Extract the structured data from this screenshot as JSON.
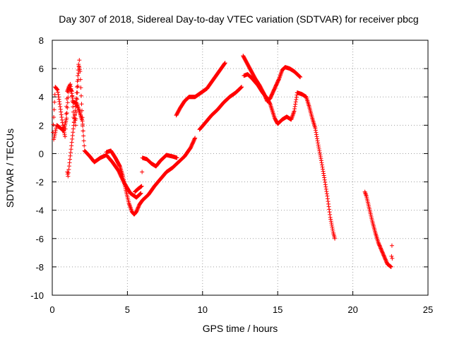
{
  "chart_data": {
    "type": "scatter",
    "title": "Day 307 of 2018, Sidereal Day-to-day VTEC variation (SDTVAR) for receiver pbcg",
    "xlabel": "GPS time / hours",
    "ylabel": "SDTVAR / TECUs",
    "xlim": [
      0,
      25
    ],
    "ylim": [
      -10,
      8
    ],
    "xticks": [
      "0",
      "5",
      "10",
      "15",
      "20",
      "25"
    ],
    "yticks": [
      "-10",
      "-8",
      "-6",
      "-4",
      "-2",
      "0",
      "2",
      "4",
      "6",
      "8"
    ],
    "grid": true,
    "marker": "plus",
    "series": [
      {
        "name": "trace-a",
        "color": "#ff0000",
        "points": [
          [
            0.05,
            1.5
          ],
          [
            0.2,
            4.7
          ],
          [
            0.35,
            4.5
          ],
          [
            0.5,
            3.5
          ],
          [
            0.7,
            2.0
          ],
          [
            0.85,
            1.2
          ],
          [
            1.0,
            4.4
          ],
          [
            1.2,
            4.9
          ],
          [
            1.4,
            3.6
          ],
          [
            1.6,
            3.6
          ],
          [
            1.8,
            3.0
          ],
          [
            2.0,
            2.3
          ],
          [
            2.15,
            0.2
          ],
          [
            2.5,
            -0.2
          ],
          [
            2.8,
            -0.6
          ],
          [
            3.2,
            -0.3
          ],
          [
            3.6,
            -0.1
          ],
          [
            4.0,
            -0.6
          ],
          [
            4.4,
            -1.2
          ],
          [
            4.8,
            -2.1
          ],
          [
            5.2,
            -2.8
          ],
          [
            5.6,
            -3.1
          ],
          [
            5.9,
            -2.8
          ]
        ]
      },
      {
        "name": "trace-b",
        "color": "#ff0000",
        "points": [
          [
            0.1,
            1.0
          ],
          [
            0.3,
            2.0
          ],
          [
            0.55,
            1.8
          ],
          [
            0.75,
            1.6
          ],
          [
            0.95,
            2.5
          ],
          [
            1.1,
            4.7
          ],
          [
            1.3,
            4.4
          ],
          [
            1.45,
            2.2
          ],
          [
            1.6,
            3.9
          ],
          [
            1.75,
            6.3
          ],
          [
            1.85,
            5.8
          ],
          [
            1.95,
            3.5
          ],
          [
            2.05,
            1.6
          ]
        ]
      },
      {
        "name": "trace-c",
        "color": "#ff0000",
        "points": [
          [
            1.0,
            -1.3
          ],
          [
            1.05,
            -1.6
          ],
          [
            1.5,
            2.7
          ],
          [
            1.55,
            2.0
          ],
          [
            1.8,
            6.6
          ]
        ]
      },
      {
        "name": "trace-d",
        "color": "#ff0000",
        "points": [
          [
            3.6,
            0.1
          ],
          [
            3.9,
            0.2
          ],
          [
            4.2,
            -0.3
          ],
          [
            4.5,
            -0.9
          ],
          [
            4.7,
            -1.6
          ],
          [
            4.9,
            -2.6
          ],
          [
            5.1,
            -3.5
          ],
          [
            5.3,
            -4.1
          ],
          [
            5.45,
            -4.3
          ],
          [
            5.6,
            -4.1
          ],
          [
            5.8,
            -3.6
          ],
          [
            6.0,
            -3.3
          ],
          [
            6.4,
            -2.9
          ],
          [
            6.8,
            -2.3
          ],
          [
            7.2,
            -1.8
          ],
          [
            7.6,
            -1.3
          ],
          [
            8.0,
            -1.0
          ],
          [
            8.4,
            -0.6
          ],
          [
            8.8,
            -0.2
          ],
          [
            9.2,
            0.4
          ],
          [
            9.5,
            1.1
          ]
        ]
      },
      {
        "name": "trace-e",
        "color": "#ff0000",
        "points": [
          [
            5.5,
            -2.7
          ],
          [
            5.7,
            -2.5
          ],
          [
            5.95,
            -2.3
          ],
          [
            6.0,
            -0.3
          ],
          [
            6.3,
            -0.4
          ],
          [
            6.6,
            -0.7
          ],
          [
            6.9,
            -0.9
          ],
          [
            7.2,
            -0.5
          ],
          [
            7.6,
            -0.1
          ],
          [
            8.0,
            -0.2
          ],
          [
            8.3,
            -0.3
          ]
        ]
      },
      {
        "name": "trace-f",
        "color": "#ff0000",
        "points": [
          [
            8.25,
            2.7
          ],
          [
            8.5,
            3.2
          ],
          [
            8.8,
            3.7
          ],
          [
            9.1,
            4.0
          ],
          [
            9.5,
            4.0
          ],
          [
            9.9,
            4.3
          ],
          [
            10.3,
            4.6
          ],
          [
            10.7,
            5.2
          ],
          [
            11.1,
            5.8
          ],
          [
            11.5,
            6.4
          ]
        ]
      },
      {
        "name": "trace-g",
        "color": "#ff0000",
        "points": [
          [
            9.8,
            1.7
          ],
          [
            10.2,
            2.2
          ],
          [
            10.6,
            2.7
          ],
          [
            11.0,
            3.1
          ],
          [
            11.4,
            3.6
          ],
          [
            11.8,
            4.0
          ],
          [
            12.2,
            4.3
          ],
          [
            12.6,
            4.7
          ]
        ]
      },
      {
        "name": "trace-h",
        "color": "#ff0000",
        "points": [
          [
            12.75,
            5.5
          ],
          [
            13.0,
            5.6
          ],
          [
            13.3,
            5.3
          ],
          [
            13.7,
            4.8
          ],
          [
            14.0,
            4.3
          ],
          [
            14.3,
            3.9
          ],
          [
            14.5,
            3.5
          ],
          [
            14.8,
            2.5
          ],
          [
            15.0,
            2.1
          ],
          [
            15.3,
            2.4
          ],
          [
            15.6,
            2.6
          ],
          [
            15.9,
            2.4
          ],
          [
            16.1,
            3.0
          ],
          [
            16.3,
            4.3
          ]
        ]
      },
      {
        "name": "trace-i",
        "color": "#ff0000",
        "points": [
          [
            12.7,
            6.9
          ],
          [
            12.9,
            6.5
          ],
          [
            13.2,
            5.9
          ],
          [
            13.5,
            5.3
          ],
          [
            13.8,
            4.8
          ],
          [
            14.1,
            4.2
          ],
          [
            14.3,
            3.7
          ],
          [
            14.5,
            3.9
          ],
          [
            14.8,
            4.6
          ],
          [
            15.1,
            5.3
          ],
          [
            15.3,
            5.9
          ],
          [
            15.5,
            6.1
          ],
          [
            15.8,
            6.0
          ],
          [
            16.1,
            5.8
          ],
          [
            16.5,
            5.4
          ]
        ]
      },
      {
        "name": "trace-j",
        "color": "#ff0000",
        "points": [
          [
            16.3,
            4.3
          ],
          [
            16.6,
            4.2
          ],
          [
            16.9,
            4.0
          ],
          [
            17.1,
            3.3
          ],
          [
            17.3,
            2.5
          ],
          [
            17.5,
            1.8
          ],
          [
            17.7,
            0.6
          ],
          [
            17.9,
            -0.5
          ],
          [
            18.1,
            -1.7
          ],
          [
            18.3,
            -3.0
          ],
          [
            18.5,
            -4.5
          ],
          [
            18.7,
            -5.6
          ],
          [
            18.8,
            -6.0
          ]
        ]
      },
      {
        "name": "trace-k",
        "color": "#ff0000",
        "points": [
          [
            20.8,
            -2.7
          ],
          [
            20.9,
            -3.0
          ],
          [
            21.1,
            -3.9
          ],
          [
            21.3,
            -4.8
          ],
          [
            21.5,
            -5.6
          ],
          [
            21.7,
            -6.3
          ],
          [
            21.9,
            -6.8
          ],
          [
            22.1,
            -7.3
          ],
          [
            22.3,
            -7.8
          ],
          [
            22.55,
            -8.0
          ],
          [
            22.6,
            -6.5
          ],
          [
            22.62,
            -7.4
          ]
        ]
      }
    ]
  }
}
